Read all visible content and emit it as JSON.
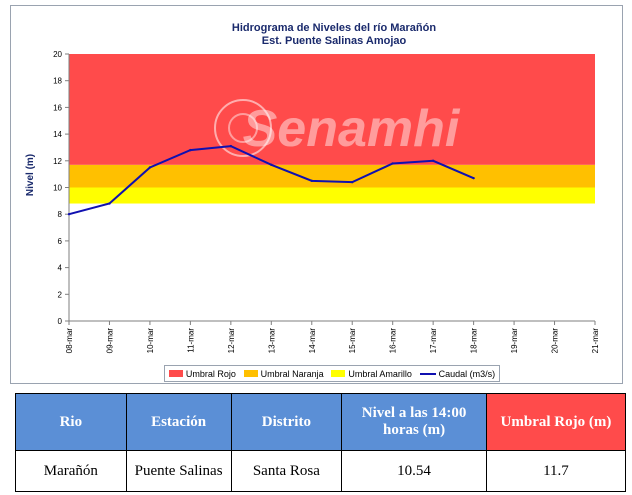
{
  "chart_data": {
    "type": "line",
    "title": "Hidrograma de Niveles del río Marañón",
    "subtitle": "Est. Puente Salinas Amojao",
    "ylabel": "Nivel (m)",
    "xlabel": "",
    "ylim": [
      0,
      20
    ],
    "yticks": [
      0,
      2,
      4,
      6,
      8,
      10,
      12,
      14,
      16,
      18,
      20
    ],
    "ytick_labels": [
      "0",
      "2",
      "4",
      "6",
      "8",
      "10",
      "12",
      "14",
      "16",
      "18",
      "20"
    ],
    "categories": [
      "08-mar",
      "09-mar",
      "10-mar",
      "11-mar",
      "12-mar",
      "13-mar",
      "14-mar",
      "15-mar",
      "16-mar",
      "17-mar",
      "18-mar",
      "19-mar",
      "20-mar",
      "21-mar"
    ],
    "series": [
      {
        "name": "Caudal (m3/s)",
        "values": [
          8.0,
          8.8,
          11.5,
          12.8,
          13.1,
          11.7,
          10.5,
          10.4,
          11.8,
          12.0,
          10.7,
          null,
          null,
          null
        ]
      }
    ],
    "bands": [
      {
        "name": "Umbral Amarillo",
        "from": 8.8,
        "to": 10.0,
        "color": "#ffff00"
      },
      {
        "name": "Umbral Naranja",
        "from": 10.0,
        "to": 11.7,
        "color": "#ffc000"
      },
      {
        "name": "Umbral Rojo",
        "from": 11.7,
        "to": 20.0,
        "color": "#ff4b4b"
      }
    ],
    "line_color": "#1010b0",
    "grid": false,
    "legend_position": "bottom",
    "watermark": "Senamhi"
  },
  "legend": {
    "items": [
      {
        "label": "Umbral Rojo",
        "color": "#ff4b4b",
        "kind": "box"
      },
      {
        "label": "Umbral Naranja",
        "color": "#ffc000",
        "kind": "box"
      },
      {
        "label": "Umbral Amarillo",
        "color": "#ffff00",
        "kind": "box"
      },
      {
        "label": "Caudal (m3/s)",
        "color": "#1010b0",
        "kind": "line"
      }
    ]
  },
  "table": {
    "headers": [
      "Rio",
      "Estación",
      "Distrito",
      "Nivel a las 14:00 horas (m)",
      "Umbral Rojo (m)"
    ],
    "header_colors": [
      "#5b8fd6",
      "#5b8fd6",
      "#5b8fd6",
      "#5b8fd6",
      "#ff4b4b"
    ],
    "row": [
      "Marañón",
      "Puente Salinas",
      "Santa Rosa",
      "10.54",
      "11.7"
    ]
  }
}
